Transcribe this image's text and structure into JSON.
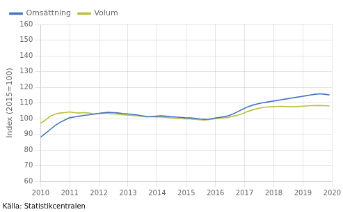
{
  "chart_data": {
    "type": "line",
    "ylabel": "Index (2015=100)",
    "source": "Källa: Statistikcentralen",
    "x": [
      2010,
      2010.1653,
      2010.3306,
      2010.4958,
      2010.6611,
      2010.8264,
      2010.9917,
      2011.157,
      2011.3223,
      2011.4875,
      2011.6528,
      2011.8181,
      2011.9834,
      2012.1487,
      2012.314,
      2012.4793,
      2012.6445,
      2012.8098,
      2012.9751,
      2013.1404,
      2013.3057,
      2013.471,
      2013.6362,
      2013.8015,
      2013.9668,
      2014.1321,
      2014.2974,
      2014.4627,
      2014.6279,
      2014.7932,
      2014.9585,
      2015.1238,
      2015.2891,
      2015.4544,
      2015.6196,
      2015.7849,
      2015.9502,
      2016.1155,
      2016.2808,
      2016.4461,
      2016.6113,
      2016.7766,
      2016.9419,
      2017.1072,
      2017.2725,
      2017.4378,
      2017.603,
      2017.7683,
      2017.9336,
      2018.0989,
      2018.2642,
      2018.4295,
      2018.5947,
      2018.76,
      2018.9253,
      2019.0906,
      2019.2559,
      2019.4212,
      2019.5864,
      2019.7517,
      2019.917
    ],
    "series": [
      {
        "name": "Omsättning",
        "color": "#4472C4",
        "values": [
          88.0,
          90.5,
          93.0,
          95.5,
          97.5,
          99.0,
          100.5,
          101.0,
          101.5,
          102.0,
          102.3,
          102.8,
          103.2,
          103.6,
          104.0,
          103.8,
          103.6,
          103.2,
          103.0,
          102.7,
          102.3,
          101.8,
          101.3,
          101.2,
          101.5,
          101.7,
          101.5,
          101.2,
          101.0,
          100.8,
          100.5,
          100.4,
          100.2,
          99.8,
          99.5,
          99.7,
          100.2,
          100.7,
          101.2,
          101.8,
          103.0,
          104.5,
          106.0,
          107.5,
          108.5,
          109.3,
          110.0,
          110.5,
          111.0,
          111.5,
          112.0,
          112.5,
          113.0,
          113.5,
          114.0,
          114.5,
          115.0,
          115.5,
          115.8,
          115.5,
          115.0
        ]
      },
      {
        "name": "Volum",
        "color": "#BBBE3C",
        "values": [
          97.0,
          99.0,
          101.5,
          102.8,
          103.5,
          103.8,
          104.2,
          103.8,
          103.5,
          103.8,
          103.5,
          103.0,
          103.2,
          103.5,
          103.3,
          103.0,
          102.8,
          102.5,
          102.2,
          102.0,
          101.8,
          101.5,
          101.0,
          101.2,
          101.0,
          101.0,
          100.8,
          100.5,
          100.3,
          100.0,
          99.8,
          99.8,
          99.5,
          99.2,
          99.0,
          99.3,
          99.8,
          100.2,
          100.5,
          100.8,
          101.5,
          102.2,
          103.2,
          104.5,
          105.5,
          106.3,
          107.0,
          107.3,
          107.5,
          107.7,
          107.8,
          107.7,
          107.5,
          107.6,
          107.8,
          108.0,
          108.2,
          108.3,
          108.3,
          108.2,
          108.0
        ]
      }
    ],
    "xlim": [
      2010.0,
      2020.0
    ],
    "xticks": [
      2010,
      2011,
      2012,
      2013,
      2014,
      2015,
      2016,
      2017,
      2018,
      2019,
      2020
    ],
    "ylim": [
      60,
      160
    ],
    "yticks": [
      60,
      70,
      80,
      90,
      100,
      110,
      120,
      130,
      140,
      150,
      160
    ],
    "grid": true,
    "legend": "upper left"
  }
}
